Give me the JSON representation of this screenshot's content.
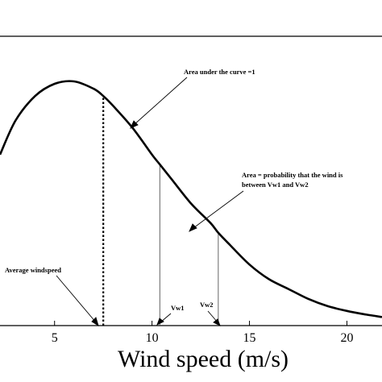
{
  "chart_data": {
    "type": "line",
    "xlabel": "Wind speed (m/s)",
    "xlim": [
      2.2,
      21.8
    ],
    "ylim": [
      0,
      1
    ],
    "xticks": [
      5,
      10,
      15,
      20
    ],
    "xtick_labels": [
      "5",
      "10",
      "15",
      "20"
    ],
    "grid": false,
    "series": [
      {
        "x": [
          2.2,
          3,
          4,
          5,
          6,
          7,
          7.5,
          8,
          9,
          10,
          10.4,
          11,
          12,
          13,
          13.4,
          14,
          15,
          16,
          17,
          18,
          19,
          20,
          21,
          21.8
        ],
        "y": [
          0.7,
          0.84,
          0.94,
          0.99,
          1.0,
          0.97,
          0.94,
          0.9,
          0.81,
          0.7,
          0.66,
          0.6,
          0.5,
          0.42,
          0.38,
          0.33,
          0.25,
          0.19,
          0.15,
          0.11,
          0.08,
          0.06,
          0.045,
          0.035
        ]
      }
    ],
    "markers": [
      {
        "name": "average",
        "x": 7.5,
        "style": "dotted"
      },
      {
        "name": "vw1",
        "x": 10.4,
        "style": "solid"
      },
      {
        "name": "vw2",
        "x": 13.4,
        "style": "solid"
      }
    ],
    "annotations": {
      "area_total": "Area under the curve =1",
      "area_prob_line1": "Area = probability that the wind is",
      "area_prob_line2": "between Vw1 and Vw2",
      "average": "Average windspeed",
      "vw1": "Vw1",
      "vw2": "Vw2"
    }
  }
}
